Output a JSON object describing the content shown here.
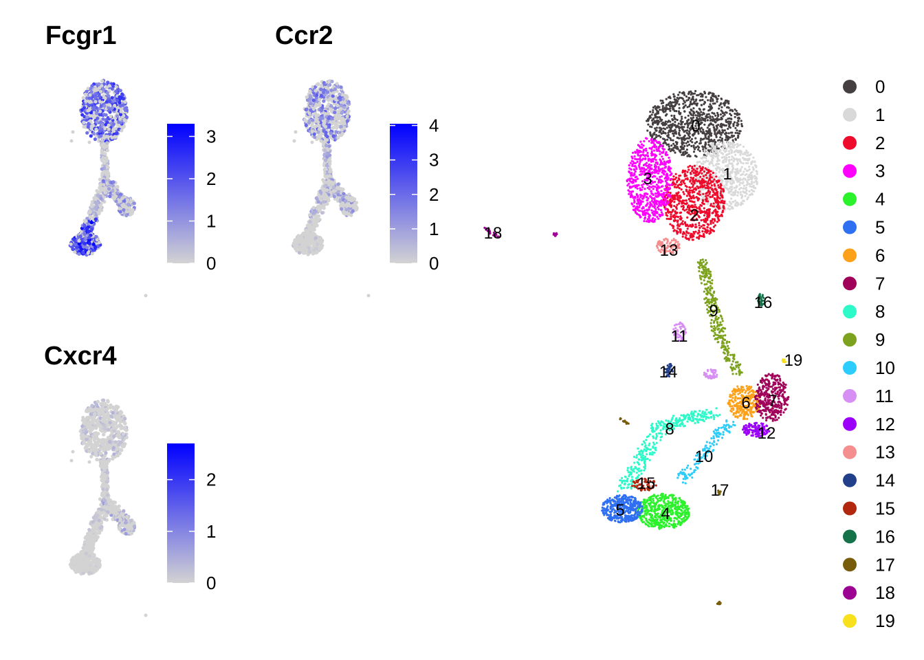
{
  "chart_data": [
    {
      "type": "scatter",
      "id": "fcgr1",
      "title": "Fcgr1",
      "legend_ticks": [
        0,
        1,
        2,
        3
      ],
      "value_range": [
        0,
        3.3
      ],
      "color_low": "#d3d3d3",
      "color_high": "#0000ff",
      "expression_by_region": {
        "top_lobe": 1.8,
        "stalk": 0.6,
        "right_branch": 1.0,
        "bottom_lobe": 2.2
      }
    },
    {
      "type": "scatter",
      "id": "ccr2",
      "title": "Ccr2",
      "legend_ticks": [
        0,
        1,
        2,
        3,
        4
      ],
      "value_range": [
        0,
        4.05
      ],
      "color_low": "#d3d3d3",
      "color_high": "#0000ff",
      "expression_by_region": {
        "top_lobe": 1.5,
        "stalk": 0.8,
        "right_branch": 1.0,
        "bottom_lobe": 0.3
      }
    },
    {
      "type": "scatter",
      "id": "cxcr4",
      "title": "Cxcr4",
      "legend_ticks": [
        0,
        1,
        2
      ],
      "value_range": [
        0,
        2.7
      ],
      "color_low": "#d3d3d3",
      "color_high": "#0000ff",
      "expression_by_region": {
        "top_lobe": 0.3,
        "stalk": 0.2,
        "right_branch": 0.5,
        "bottom_lobe": 0.1
      }
    },
    {
      "type": "scatter",
      "id": "clusters",
      "title": "",
      "legend_placement": "right",
      "clusters": [
        {
          "label": "0",
          "color": "#453f42"
        },
        {
          "label": "1",
          "color": "#d9d9d9"
        },
        {
          "label": "2",
          "color": "#ee0b2b"
        },
        {
          "label": "3",
          "color": "#ff00ff"
        },
        {
          "label": "4",
          "color": "#2cf22c"
        },
        {
          "label": "5",
          "color": "#2f6ff2"
        },
        {
          "label": "6",
          "color": "#fea11a"
        },
        {
          "label": "7",
          "color": "#a0025a"
        },
        {
          "label": "8",
          "color": "#2efac9"
        },
        {
          "label": "9",
          "color": "#7da31e"
        },
        {
          "label": "10",
          "color": "#2ccdfc"
        },
        {
          "label": "11",
          "color": "#d88ff3"
        },
        {
          "label": "12",
          "color": "#9b00fa"
        },
        {
          "label": "13",
          "color": "#f58e8e"
        },
        {
          "label": "14",
          "color": "#223f8a"
        },
        {
          "label": "15",
          "color": "#b1280f"
        },
        {
          "label": "16",
          "color": "#157249"
        },
        {
          "label": "17",
          "color": "#775d0b"
        },
        {
          "label": "18",
          "color": "#9c0393"
        },
        {
          "label": "19",
          "color": "#f9e01d"
        }
      ]
    }
  ]
}
